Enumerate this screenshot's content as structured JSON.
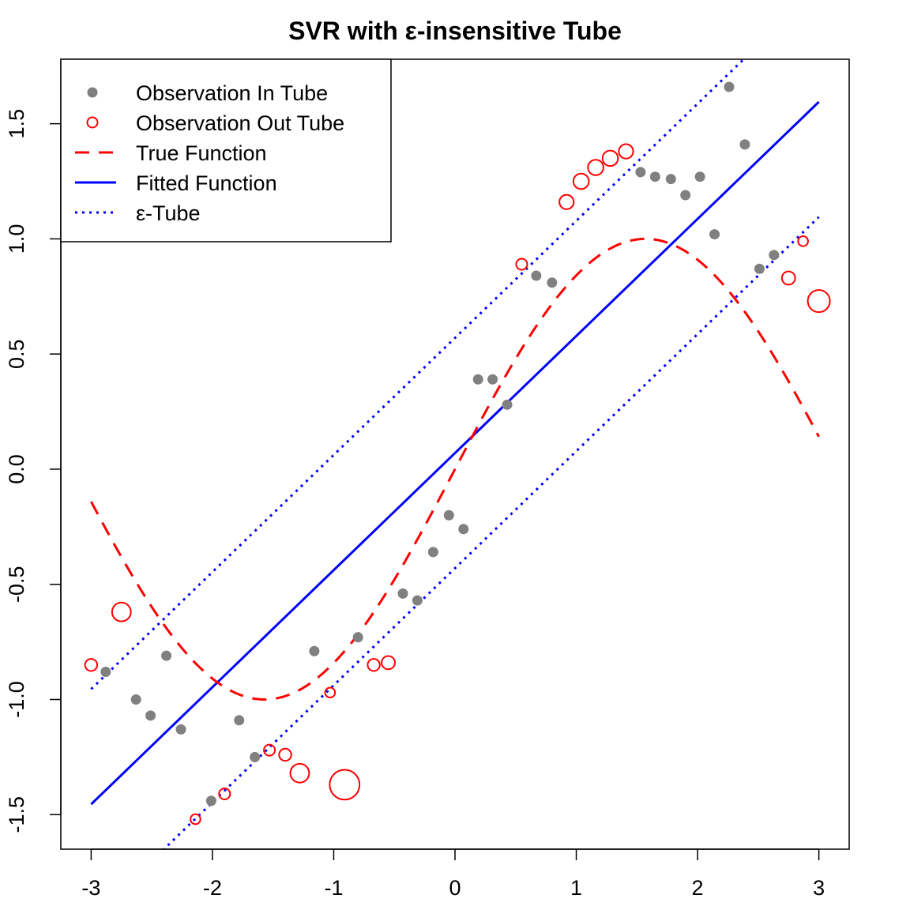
{
  "chart_data": {
    "type": "scatter",
    "title": "SVR with ε-insensitive Tube",
    "xlabel": "",
    "ylabel": "",
    "xlim": [
      -3.25,
      3.25
    ],
    "ylim": [
      -1.65,
      1.78
    ],
    "x_ticks": [
      -3,
      -2,
      -1,
      0,
      1,
      2,
      3
    ],
    "x_tick_labels": [
      "-3",
      "-2",
      "-1",
      "0",
      "1",
      "2",
      "3"
    ],
    "y_ticks": [
      -1.5,
      -1.0,
      -0.5,
      0.0,
      0.5,
      1.0,
      1.5
    ],
    "y_tick_labels": [
      "-1.5",
      "-1.0",
      "-0.5",
      "0.0",
      "0.5",
      "1.0",
      "1.5"
    ],
    "grid": false,
    "legend_position": "top-left",
    "legend": [
      {
        "label": "Observation In Tube",
        "kind": "filled-point",
        "color": "#808080"
      },
      {
        "label": "Observation Out Tube",
        "kind": "open-point",
        "color": "#ff0000"
      },
      {
        "label": "True Function",
        "kind": "dashed-line",
        "color": "#ff0000"
      },
      {
        "label": "Fitted Function",
        "kind": "solid-line",
        "color": "#0000ff"
      },
      {
        "label": "ε-Tube",
        "kind": "dotted-line",
        "color": "#0000ff"
      }
    ],
    "fitted_function": {
      "intercept": 0.07,
      "slope": 0.5083
    },
    "epsilon": 0.5,
    "true_function": {
      "form": "sin(x)",
      "x_range": [
        -3,
        3
      ]
    },
    "series": [
      {
        "name": "Observation In Tube",
        "points": [
          {
            "x": -2.88,
            "y": -0.88
          },
          {
            "x": -2.63,
            "y": -1.0
          },
          {
            "x": -2.51,
            "y": -1.07
          },
          {
            "x": -2.38,
            "y": -0.81
          },
          {
            "x": -2.26,
            "y": -1.13
          },
          {
            "x": -2.01,
            "y": -1.44
          },
          {
            "x": -1.78,
            "y": -1.09
          },
          {
            "x": -1.65,
            "y": -1.25
          },
          {
            "x": -1.16,
            "y": -0.79
          },
          {
            "x": -0.8,
            "y": -0.73
          },
          {
            "x": -0.43,
            "y": -0.54
          },
          {
            "x": -0.31,
            "y": -0.57
          },
          {
            "x": -0.18,
            "y": -0.36
          },
          {
            "x": -0.05,
            "y": -0.2
          },
          {
            "x": 0.07,
            "y": -0.26
          },
          {
            "x": 0.19,
            "y": 0.39
          },
          {
            "x": 0.31,
            "y": 0.39
          },
          {
            "x": 0.43,
            "y": 0.28
          },
          {
            "x": 0.67,
            "y": 0.84
          },
          {
            "x": 0.8,
            "y": 0.81
          },
          {
            "x": 1.53,
            "y": 1.29
          },
          {
            "x": 1.65,
            "y": 1.27
          },
          {
            "x": 1.78,
            "y": 1.26
          },
          {
            "x": 1.9,
            "y": 1.19
          },
          {
            "x": 2.02,
            "y": 1.27
          },
          {
            "x": 2.14,
            "y": 1.02
          },
          {
            "x": 2.26,
            "y": 1.66
          },
          {
            "x": 2.39,
            "y": 1.41
          },
          {
            "x": 2.51,
            "y": 0.87
          },
          {
            "x": 2.63,
            "y": 0.93
          }
        ]
      },
      {
        "name": "Observation Out Tube",
        "points": [
          {
            "x": -3.0,
            "y": -0.85,
            "size": 0.55
          },
          {
            "x": -2.75,
            "y": -0.62,
            "size": 0.85
          },
          {
            "x": -2.14,
            "y": -1.52,
            "size": 0.45
          },
          {
            "x": -1.9,
            "y": -1.41,
            "size": 0.5
          },
          {
            "x": -1.53,
            "y": -1.22,
            "size": 0.5
          },
          {
            "x": -1.4,
            "y": -1.24,
            "size": 0.55
          },
          {
            "x": -1.28,
            "y": -1.32,
            "size": 0.85
          },
          {
            "x": -1.03,
            "y": -0.97,
            "size": 0.45
          },
          {
            "x": -0.91,
            "y": -1.37,
            "size": 1.35
          },
          {
            "x": -0.67,
            "y": -0.85,
            "size": 0.55
          },
          {
            "x": -0.55,
            "y": -0.84,
            "size": 0.6
          },
          {
            "x": 0.55,
            "y": 0.89,
            "size": 0.5
          },
          {
            "x": 0.92,
            "y": 1.16,
            "size": 0.65
          },
          {
            "x": 1.04,
            "y": 1.25,
            "size": 0.7
          },
          {
            "x": 1.16,
            "y": 1.31,
            "size": 0.7
          },
          {
            "x": 1.28,
            "y": 1.35,
            "size": 0.7
          },
          {
            "x": 1.41,
            "y": 1.38,
            "size": 0.65
          },
          {
            "x": 2.75,
            "y": 0.83,
            "size": 0.6
          },
          {
            "x": 2.87,
            "y": 0.99,
            "size": 0.45
          },
          {
            "x": 3.0,
            "y": 0.73,
            "size": 1.0
          }
        ]
      }
    ]
  }
}
